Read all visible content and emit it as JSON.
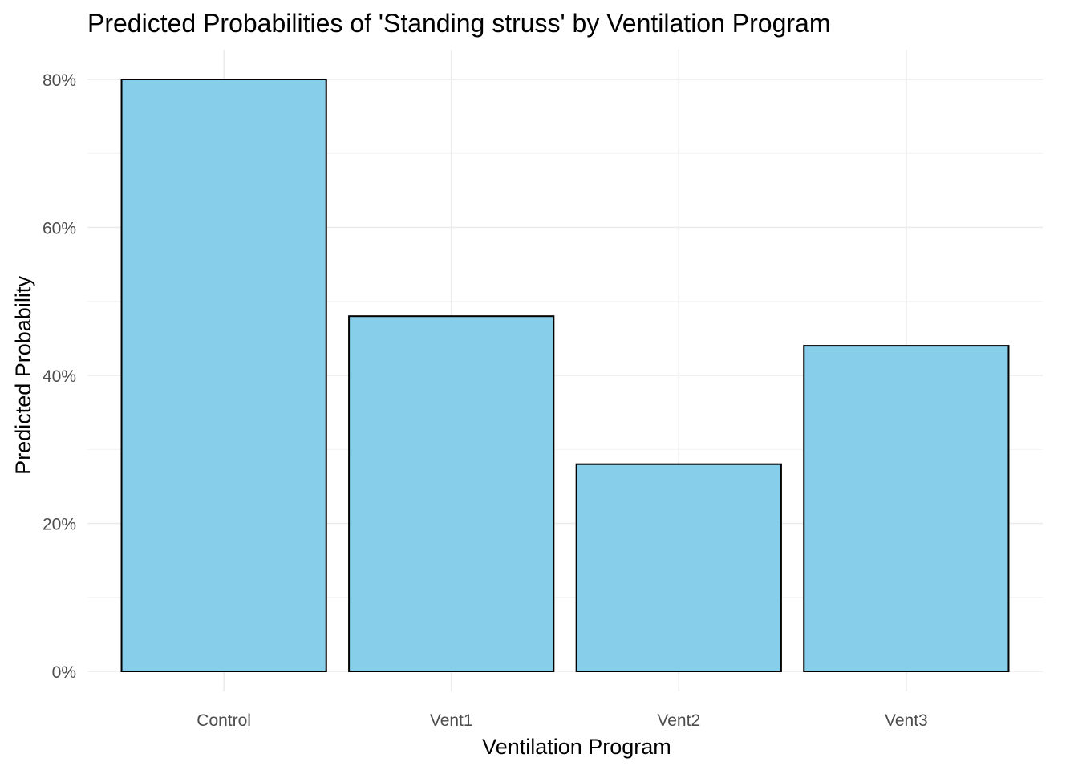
{
  "chart_data": {
    "type": "bar",
    "title": "Predicted Probabilities of 'Standing struss' by Ventilation Program",
    "xlabel": "Ventilation Program",
    "ylabel": "Predicted Probability",
    "categories": [
      "Control",
      "Vent1",
      "Vent2",
      "Vent3"
    ],
    "values": [
      0.8,
      0.48,
      0.28,
      0.44
    ],
    "ylim": [
      0,
      0.8
    ],
    "y_ticks": [
      0,
      0.2,
      0.4,
      0.6,
      0.8
    ],
    "y_tick_labels": [
      "0%",
      "20%",
      "40%",
      "60%",
      "80%"
    ],
    "bar_fill": "#87CEEB",
    "bar_outline": "#000000",
    "grid": true,
    "legend": "none"
  }
}
